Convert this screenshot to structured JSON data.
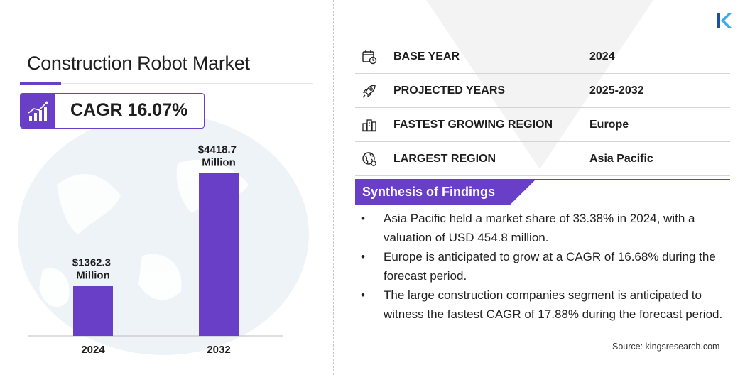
{
  "title": "Construction Robot Market",
  "cagr_label": "CAGR 16.07%",
  "colors": {
    "accent": "#6a3fc8",
    "map": "#eef3f8",
    "triangle": "#f2f2f2"
  },
  "icons": {
    "logo": "kingsresearch-k-logo",
    "cagr": "growth-chart-icon"
  },
  "chart_data": {
    "type": "bar",
    "categories": [
      "2024",
      "2032"
    ],
    "values": [
      1362.3,
      4418.7
    ],
    "value_labels": [
      [
        "$1362.3",
        "Million"
      ],
      [
        "$4418.7",
        "Million"
      ]
    ],
    "title": "",
    "xlabel": "",
    "ylabel": "",
    "ylim": [
      0,
      5200
    ],
    "grid": false,
    "legend": "none"
  },
  "info": [
    {
      "label": "BASE YEAR",
      "value": "2024",
      "icon": "calendar-icon"
    },
    {
      "label": "PROJECTED YEARS",
      "value": "2025-2032",
      "icon": "rocket-icon"
    },
    {
      "label": "FASTEST GROWING REGION",
      "value": "Europe",
      "icon": "city-icon"
    },
    {
      "label": "LARGEST REGION",
      "value": "Asia Pacific",
      "icon": "globe-icon"
    }
  ],
  "synthesis": {
    "title": "Synthesis of Findings",
    "bullet": "•",
    "items": [
      "Asia Pacific held a market share of 33.38% in 2024, with a valuation of USD 454.8 million.",
      "Europe is anticipated to grow at a CAGR of 16.68% during the forecast period.",
      "The large construction companies segment is anticipated to witness the fastest CAGR of 17.88% during the forecast period."
    ]
  },
  "source": "Source:  kingsresearch.com"
}
